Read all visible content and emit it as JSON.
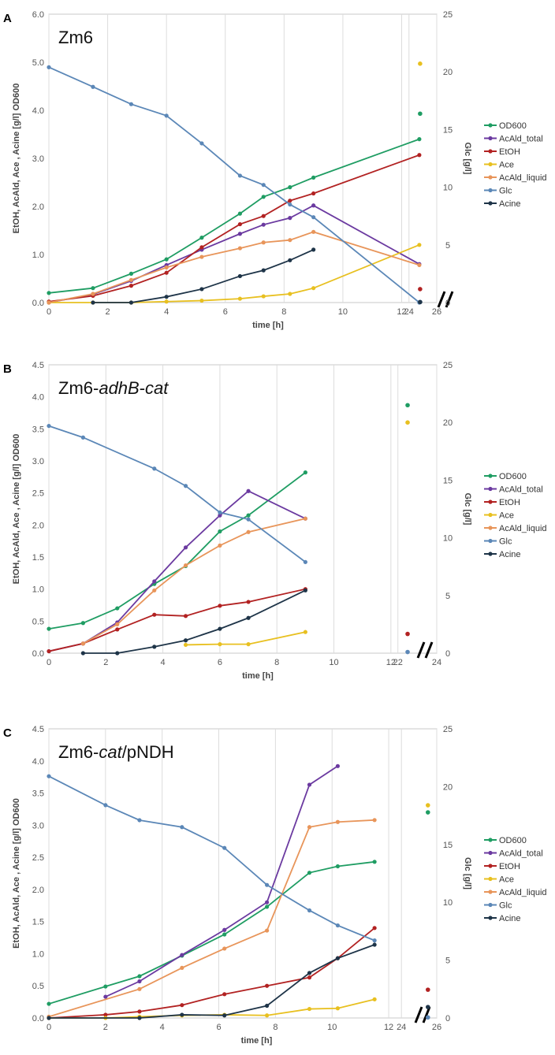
{
  "colors": {
    "OD600": "#1f9d63",
    "AcAld_total": "#6b3aa0",
    "EtOH": "#b22222",
    "Ace": "#e8c020",
    "AcAld_liquid": "#e8955a",
    "Glc": "#5b87b7",
    "Acine": "#1e3448"
  },
  "chart_data": [
    {
      "type": "line",
      "panel": "A",
      "title": "Zm6",
      "title_parts": [
        {
          "t": "Zm6",
          "i": false
        }
      ],
      "xlabel": "time [h]",
      "ylabel": "EtOH, AcAld, Ace , Acine [g/l]  OD600",
      "y2label": "Glc [g/l]",
      "xticks": [
        "0",
        "2",
        "4",
        "6",
        "8",
        "10",
        "12",
        "24",
        "26"
      ],
      "yticks": [
        "0.0",
        "1.0",
        "2.0",
        "3.0",
        "4.0",
        "5.0",
        "6.0"
      ],
      "y2ticks": [
        "0",
        "5",
        "10",
        "15",
        "20",
        "25"
      ],
      "xlim": [
        0,
        13.3
      ],
      "ylim": [
        0,
        6
      ],
      "y2lim": [
        0,
        25
      ],
      "late_xlim": [
        23.5,
        26
      ],
      "series": [
        {
          "name": "OD600",
          "axis": "left",
          "x": [
            0,
            1.5,
            2.8,
            4,
            5.2,
            6.5,
            7.3,
            8.2,
            9
          ],
          "y": [
            0.2,
            0.3,
            0.6,
            0.9,
            1.35,
            1.85,
            2.2,
            2.4,
            2.6
          ],
          "x_end": 12.6,
          "y_end": 3.4,
          "late_x": 24.8,
          "late_y": 3.93
        },
        {
          "name": "AcAld_total",
          "axis": "left",
          "x": [
            0,
            1.5,
            2.8,
            4,
            5.2,
            6.5,
            7.3,
            8.2,
            9
          ],
          "y": [
            0.0,
            0.17,
            0.45,
            0.78,
            1.1,
            1.43,
            1.62,
            1.76,
            2.02
          ],
          "x_end": 12.6,
          "y_end": 0.8
        },
        {
          "name": "EtOH",
          "axis": "left",
          "x": [
            0,
            1.5,
            2.8,
            4,
            5.2,
            6.5,
            7.3,
            8.2,
            9
          ],
          "y": [
            0.02,
            0.14,
            0.35,
            0.62,
            1.15,
            1.63,
            1.8,
            2.12,
            2.27
          ],
          "x_end": 12.6,
          "y_end": 3.07,
          "late_x": 24.8,
          "late_y": 0.28
        },
        {
          "name": "Ace",
          "axis": "left",
          "x": [
            0,
            1.5,
            2.8,
            4,
            5.2,
            6.5,
            7.3,
            8.2,
            9
          ],
          "y": [
            0.0,
            0.0,
            0.0,
            0.02,
            0.04,
            0.08,
            0.13,
            0.18,
            0.3
          ],
          "x_end": 12.6,
          "y_end": 1.2,
          "late_x": 24.8,
          "late_y": 4.97
        },
        {
          "name": "AcAld_liquid",
          "axis": "left",
          "x": [
            0,
            1.5,
            2.8,
            4,
            5.2,
            6.5,
            7.3,
            8.2,
            9
          ],
          "y": [
            0.0,
            0.18,
            0.47,
            0.73,
            0.95,
            1.13,
            1.25,
            1.3,
            1.47
          ],
          "x_end": 12.6,
          "y_end": 0.78
        },
        {
          "name": "Glc",
          "axis": "right",
          "x": [
            0,
            1.5,
            2.8,
            4,
            5.2,
            6.5,
            7.3,
            8.2,
            9
          ],
          "y": [
            20.4,
            18.7,
            17.2,
            16.2,
            13.8,
            11.0,
            10.2,
            8.5,
            7.4
          ],
          "x_end": 12.6,
          "y_end": 0.0,
          "late_x": 24.8,
          "late_y": 0.05
        },
        {
          "name": "Acine",
          "axis": "left",
          "x": [
            1.5,
            2.8,
            4,
            5.2,
            6.5,
            7.3,
            8.2,
            9
          ],
          "y": [
            0.0,
            0.0,
            0.12,
            0.28,
            0.55,
            0.67,
            0.88,
            1.1
          ],
          "late_x": 24.8,
          "late_y": 0.01
        }
      ]
    },
    {
      "type": "line",
      "panel": "B",
      "title": "Zm6-adhB-cat",
      "title_parts": [
        {
          "t": "Zm6-",
          "i": false
        },
        {
          "t": "adhB",
          "i": true
        },
        {
          "t": "-",
          "i": false
        },
        {
          "t": "cat",
          "i": true
        }
      ],
      "xlabel": "time [h]",
      "ylabel": "EtOH, AcAld, Ace , Acine [g/l]  OD600",
      "y2label": "Glc [g/l]",
      "xticks": [
        "0",
        "2",
        "4",
        "6",
        "8",
        "10",
        "12",
        "22",
        "24"
      ],
      "yticks": [
        "0.0",
        "0.5",
        "1.0",
        "1.5",
        "2.0",
        "2.5",
        "3.0",
        "3.5",
        "4.0",
        "4.5"
      ],
      "y2ticks": [
        "0",
        "5",
        "10",
        "15",
        "20",
        "25"
      ],
      "xlim": [
        0,
        13
      ],
      "ylim": [
        0,
        4.5
      ],
      "y2lim": [
        0,
        25
      ],
      "late_xlim": [
        21.2,
        24
      ],
      "series": [
        {
          "name": "OD600",
          "axis": "left",
          "x": [
            0,
            1.2,
            2.4,
            3.7,
            4.8,
            6,
            7,
            9
          ],
          "y": [
            0.38,
            0.47,
            0.7,
            1.08,
            1.36,
            1.9,
            2.15,
            2.82
          ],
          "late_x": 22.5,
          "late_y": 3.87
        },
        {
          "name": "AcAld_total",
          "axis": "left",
          "x": [
            0,
            1.2,
            2.4,
            3.7,
            4.8,
            6,
            7,
            9
          ],
          "y": [
            0.03,
            0.15,
            0.48,
            1.12,
            1.65,
            2.15,
            2.53,
            2.1
          ]
        },
        {
          "name": "EtOH",
          "axis": "left",
          "x": [
            0,
            1.2,
            2.4,
            3.7,
            4.8,
            6,
            7,
            9
          ],
          "y": [
            0.03,
            0.15,
            0.37,
            0.6,
            0.58,
            0.74,
            0.8,
            1.0
          ],
          "late_x": 22.5,
          "late_y": 0.3
        },
        {
          "name": "Ace",
          "axis": "left",
          "x": [
            4.8,
            6,
            7,
            9
          ],
          "y": [
            0.13,
            0.14,
            0.14,
            0.33
          ],
          "late_x": 22.5,
          "late_y": 3.6
        },
        {
          "name": "AcAld_liquid",
          "axis": "left",
          "x": [
            1.2,
            2.4,
            3.7,
            4.8,
            6,
            7,
            9
          ],
          "y": [
            0.15,
            0.45,
            0.98,
            1.37,
            1.68,
            1.89,
            2.1
          ]
        },
        {
          "name": "Glc",
          "axis": "right",
          "x": [
            0,
            1.2,
            3.7,
            4.8,
            6,
            7,
            9
          ],
          "y": [
            19.7,
            18.7,
            16.0,
            14.5,
            12.2,
            11.6,
            7.9
          ],
          "late_x": 22.5,
          "late_y": 0.1
        },
        {
          "name": "Acine",
          "axis": "left",
          "x": [
            1.2,
            2.4,
            3.7,
            4.8,
            6,
            7,
            9
          ],
          "y": [
            0.0,
            0.0,
            0.1,
            0.2,
            0.38,
            0.55,
            0.98
          ]
        }
      ]
    },
    {
      "type": "line",
      "panel": "C",
      "title": "Zm6-cat/pNDH",
      "title_parts": [
        {
          "t": "Zm6-",
          "i": false
        },
        {
          "t": "cat",
          "i": true
        },
        {
          "t": "/pNDH",
          "i": false
        }
      ],
      "xlabel": "time [h]",
      "ylabel": "EtOH, AcAld, Ace , Acine [g/l]  OD600",
      "y2label": "Glc [g/l]",
      "xticks": [
        "0",
        "2",
        "4",
        "6",
        "8",
        "10",
        "12",
        "24",
        "26"
      ],
      "yticks": [
        "0.0",
        "0.5",
        "1.0",
        "1.5",
        "2.0",
        "2.5",
        "3.0",
        "3.5",
        "4.0",
        "4.5"
      ],
      "y2ticks": [
        "0",
        "5",
        "10",
        "15",
        "20",
        "25"
      ],
      "xlim": [
        0,
        13
      ],
      "ylim": [
        0,
        4.5
      ],
      "y2lim": [
        0,
        25
      ],
      "late_xlim": [
        23.5,
        26
      ],
      "series": [
        {
          "name": "OD600",
          "axis": "left",
          "x": [
            0,
            2,
            3.2,
            4.7,
            6.2,
            7.7,
            9.2,
            10.2,
            11.5
          ],
          "y": [
            0.22,
            0.49,
            0.65,
            0.97,
            1.3,
            1.73,
            2.26,
            2.36,
            2.43
          ],
          "late_x": 25.5,
          "late_y": 3.2
        },
        {
          "name": "AcAld_total",
          "axis": "left",
          "x": [
            2,
            3.2,
            4.7,
            6.2,
            7.7,
            9.2,
            10.2
          ],
          "y": [
            0.33,
            0.57,
            0.98,
            1.37,
            1.8,
            3.63,
            3.92
          ]
        },
        {
          "name": "EtOH",
          "axis": "left",
          "x": [
            0,
            2,
            3.2,
            4.7,
            6.2,
            7.7,
            9.2,
            10.2,
            11.5
          ],
          "y": [
            0.0,
            0.05,
            0.1,
            0.2,
            0.37,
            0.5,
            0.63,
            0.93,
            1.4
          ],
          "late_x": 25.5,
          "late_y": 0.44
        },
        {
          "name": "Ace",
          "axis": "left",
          "x": [
            0,
            2,
            3.2,
            4.7,
            6.2,
            7.7,
            9.2,
            10.2,
            11.5
          ],
          "y": [
            0.0,
            0.0,
            0.02,
            0.04,
            0.05,
            0.04,
            0.14,
            0.15,
            0.29
          ],
          "late_x": 25.5,
          "late_y": 3.31
        },
        {
          "name": "AcAld_liquid",
          "axis": "left",
          "x": [
            0,
            3.2,
            4.7,
            6.2,
            7.7,
            9.2,
            10.2,
            11.5
          ],
          "y": [
            0.02,
            0.45,
            0.78,
            1.08,
            1.36,
            2.97,
            3.05,
            3.08
          ]
        },
        {
          "name": "Glc",
          "axis": "right",
          "x": [
            0,
            2,
            3.2,
            4.7,
            6.2,
            7.7,
            9.2,
            10.2,
            11.5
          ],
          "y": [
            20.9,
            18.4,
            17.1,
            16.5,
            14.7,
            11.5,
            9.3,
            8.0,
            6.7
          ],
          "late_x": 25.5,
          "late_y": 0.05
        },
        {
          "name": "Acine",
          "axis": "left",
          "x": [
            0,
            3.2,
            4.7,
            6.2,
            7.7,
            9.2,
            10.2,
            11.5
          ],
          "y": [
            0.0,
            0.0,
            0.05,
            0.04,
            0.19,
            0.7,
            0.93,
            1.14
          ],
          "late_x": 25.5,
          "late_y": 0.17
        }
      ]
    }
  ]
}
